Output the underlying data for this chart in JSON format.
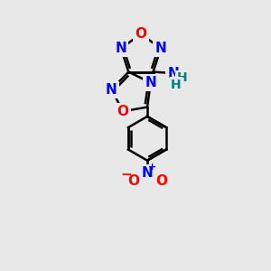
{
  "bg_color": "#e8e8e8",
  "atom_colors": {
    "C": "#000000",
    "N": "#0000ff",
    "O": "#ff0000",
    "H": "#008080"
  },
  "bond_color": "#000000",
  "bond_width": 1.8,
  "font_size_atoms": 11
}
